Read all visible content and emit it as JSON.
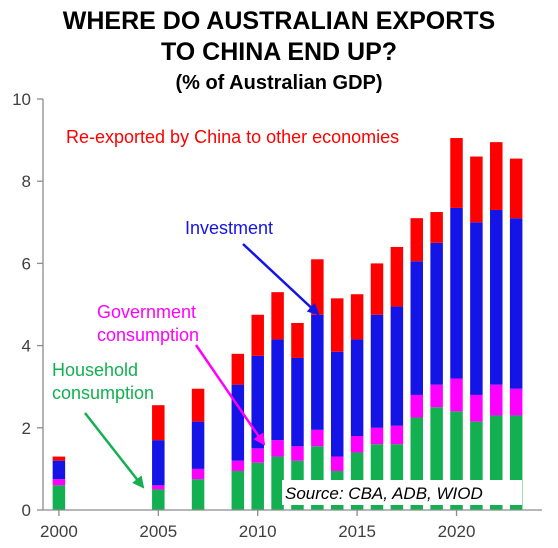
{
  "title_line1": "WHERE DO AUSTRALIAN EXPORTS",
  "title_line2": "TO CHINA END UP?",
  "subtitle": "(% of Australian GDP)",
  "source": "Source: CBA, ADB, WIOD",
  "colors": {
    "household": "#12b050",
    "government": "#ff00ff",
    "investment": "#1414e6",
    "reexport": "#ff0000",
    "annotation_household": "#12b050",
    "annotation_government": "#ff00ff",
    "annotation_investment": "#1414e6",
    "annotation_reexport": "#ff0000"
  },
  "annotations": {
    "reexport": "Re-exported by China to other economies",
    "investment": "Investment",
    "government_line1": "Government",
    "government_line2": "consumption",
    "household_line1": "Household",
    "household_line2": "consumption"
  },
  "chart_data": {
    "type": "bar",
    "stacked": true,
    "x": [
      2000,
      2005,
      2007,
      2009,
      2010,
      2011,
      2012,
      2013,
      2014,
      2015,
      2016,
      2017,
      2018,
      2019,
      2020,
      2021,
      2022,
      2023
    ],
    "series": [
      {
        "name": "Household consumption",
        "color": "#12b050",
        "values": [
          0.6,
          0.5,
          0.75,
          0.95,
          1.15,
          1.3,
          1.2,
          1.55,
          0.95,
          1.4,
          1.6,
          1.6,
          2.25,
          2.5,
          2.4,
          2.15,
          2.3,
          2.3
        ]
      },
      {
        "name": "Government consumption",
        "color": "#ff00ff",
        "values": [
          0.15,
          0.1,
          0.25,
          0.25,
          0.35,
          0.4,
          0.35,
          0.4,
          0.35,
          0.4,
          0.4,
          0.45,
          0.55,
          0.55,
          0.8,
          0.65,
          0.75,
          0.65
        ]
      },
      {
        "name": "Investment",
        "color": "#1414e6",
        "values": [
          0.45,
          1.1,
          1.15,
          1.85,
          2.25,
          2.45,
          2.15,
          2.8,
          2.55,
          2.35,
          2.75,
          2.9,
          3.25,
          3.45,
          4.15,
          4.2,
          4.25,
          4.15
        ]
      },
      {
        "name": "Re-exported by China to other economies",
        "color": "#ff0000",
        "values": [
          0.1,
          0.85,
          0.8,
          0.75,
          1.0,
          1.15,
          0.85,
          1.35,
          1.3,
          1.1,
          1.25,
          1.45,
          1.05,
          0.75,
          1.7,
          1.6,
          1.65,
          1.45
        ]
      }
    ],
    "xlim": [
      1999.2,
      2024.3
    ],
    "ylim": [
      0,
      10
    ],
    "xticks": [
      2000,
      2005,
      2010,
      2015,
      2020
    ],
    "yticks": [
      0,
      2,
      4,
      6,
      8,
      10
    ],
    "title": "WHERE DO AUSTRALIAN EXPORTS TO CHINA END UP?",
    "subtitle": "(% of Australian GDP)",
    "xlabel": "",
    "ylabel": "",
    "grid": false,
    "legend": "none (series labelled by annotations)"
  }
}
